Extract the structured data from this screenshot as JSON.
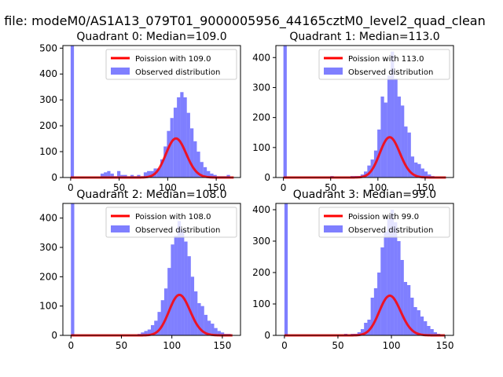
{
  "figure": {
    "suptitle": "n file: modeM0/AS1A13_079T01_9000005956_44165cztM0_level2_quad_clean"
  },
  "colors": {
    "histogram": "#0000ff",
    "histogram_alpha": 0.5,
    "poisson": "#ff0000",
    "axes": "#000000"
  },
  "chart_data": [
    {
      "type": "bar",
      "title": "Quadrant 0: Median=109.0",
      "xlabel": "",
      "ylabel": "",
      "xlim": [
        -8,
        175
      ],
      "ylim": [
        0,
        510
      ],
      "xticks": [
        0,
        50,
        100,
        150
      ],
      "yticks": [
        0,
        100,
        200,
        300,
        400,
        500
      ],
      "grid": false,
      "legend": {
        "placement": "upper right",
        "entries": [
          "Poission with 109.0",
          "Observed distribution"
        ]
      },
      "poisson_lambda": 109.0,
      "poisson_n": 3950,
      "poisson_xrange": [
        0,
        168
      ],
      "bin_width": 3.42,
      "histogram": [
        {
          "x": 0,
          "v": 510
        },
        {
          "x": 3.4,
          "v": 0
        },
        {
          "x": 6.8,
          "v": 0
        },
        {
          "x": 10.3,
          "v": 2
        },
        {
          "x": 13.7,
          "v": 0
        },
        {
          "x": 17.1,
          "v": 0
        },
        {
          "x": 20.5,
          "v": 0
        },
        {
          "x": 24.0,
          "v": 0
        },
        {
          "x": 27.4,
          "v": 0
        },
        {
          "x": 30.8,
          "v": 15
        },
        {
          "x": 34.2,
          "v": 20
        },
        {
          "x": 37.6,
          "v": 25
        },
        {
          "x": 41.1,
          "v": 15
        },
        {
          "x": 44.5,
          "v": 5
        },
        {
          "x": 47.9,
          "v": 25
        },
        {
          "x": 51.3,
          "v": 10
        },
        {
          "x": 54.7,
          "v": 10
        },
        {
          "x": 58.2,
          "v": 5
        },
        {
          "x": 61.6,
          "v": 10
        },
        {
          "x": 65.0,
          "v": 5
        },
        {
          "x": 68.4,
          "v": 10
        },
        {
          "x": 71.9,
          "v": 5
        },
        {
          "x": 75.3,
          "v": 20
        },
        {
          "x": 78.7,
          "v": 25
        },
        {
          "x": 82.1,
          "v": 25
        },
        {
          "x": 85.5,
          "v": 35
        },
        {
          "x": 89.0,
          "v": 35
        },
        {
          "x": 92.4,
          "v": 70
        },
        {
          "x": 95.8,
          "v": 120
        },
        {
          "x": 99.2,
          "v": 180
        },
        {
          "x": 102.6,
          "v": 230
        },
        {
          "x": 106.1,
          "v": 270
        },
        {
          "x": 109.5,
          "v": 310
        },
        {
          "x": 112.9,
          "v": 330
        },
        {
          "x": 116.3,
          "v": 310
        },
        {
          "x": 119.7,
          "v": 250
        },
        {
          "x": 123.2,
          "v": 190
        },
        {
          "x": 126.6,
          "v": 140
        },
        {
          "x": 130.0,
          "v": 100
        },
        {
          "x": 133.4,
          "v": 60
        },
        {
          "x": 136.9,
          "v": 40
        },
        {
          "x": 140.3,
          "v": 25
        },
        {
          "x": 143.7,
          "v": 15
        },
        {
          "x": 147.1,
          "v": 10
        },
        {
          "x": 150.5,
          "v": 5
        },
        {
          "x": 154.0,
          "v": 5
        },
        {
          "x": 157.4,
          "v": 5
        },
        {
          "x": 160.8,
          "v": 10
        }
      ]
    },
    {
      "type": "bar",
      "title": "Quadrant 1: Median=113.0",
      "xlabel": "",
      "ylabel": "",
      "xlim": [
        -8,
        180
      ],
      "ylim": [
        0,
        440
      ],
      "xticks": [
        0,
        50,
        100,
        150
      ],
      "yticks": [
        0,
        100,
        200,
        300,
        400
      ],
      "grid": false,
      "legend": {
        "placement": "upper right",
        "entries": [
          "Poission with 113.0",
          "Observed distribution"
        ]
      },
      "poisson_lambda": 113.0,
      "poisson_n": 3580,
      "poisson_xrange": [
        0,
        172
      ],
      "bin_width": 3.55,
      "histogram": [
        {
          "x": 0,
          "v": 440
        },
        {
          "x": 3.6,
          "v": 0
        },
        {
          "x": 7.1,
          "v": 0
        },
        {
          "x": 10.7,
          "v": 0
        },
        {
          "x": 14.2,
          "v": 0
        },
        {
          "x": 17.8,
          "v": 0
        },
        {
          "x": 21.3,
          "v": 0
        },
        {
          "x": 24.9,
          "v": 0
        },
        {
          "x": 28.4,
          "v": 0
        },
        {
          "x": 32.0,
          "v": 0
        },
        {
          "x": 35.5,
          "v": 0
        },
        {
          "x": 39.1,
          "v": 0
        },
        {
          "x": 42.6,
          "v": 0
        },
        {
          "x": 46.2,
          "v": 0
        },
        {
          "x": 49.7,
          "v": 5
        },
        {
          "x": 53.3,
          "v": 0
        },
        {
          "x": 56.8,
          "v": 0
        },
        {
          "x": 60.4,
          "v": 0
        },
        {
          "x": 63.9,
          "v": 0
        },
        {
          "x": 67.5,
          "v": 0
        },
        {
          "x": 71.0,
          "v": 5
        },
        {
          "x": 74.6,
          "v": 5
        },
        {
          "x": 78.1,
          "v": 5
        },
        {
          "x": 81.7,
          "v": 10
        },
        {
          "x": 85.2,
          "v": 20
        },
        {
          "x": 88.8,
          "v": 40
        },
        {
          "x": 92.3,
          "v": 60
        },
        {
          "x": 95.9,
          "v": 90
        },
        {
          "x": 99.4,
          "v": 160
        },
        {
          "x": 103.0,
          "v": 270
        },
        {
          "x": 106.5,
          "v": 250
        },
        {
          "x": 110.1,
          "v": 340
        },
        {
          "x": 113.6,
          "v": 420
        },
        {
          "x": 117.2,
          "v": 330
        },
        {
          "x": 120.7,
          "v": 270
        },
        {
          "x": 124.3,
          "v": 240
        },
        {
          "x": 127.8,
          "v": 170
        },
        {
          "x": 131.4,
          "v": 150
        },
        {
          "x": 134.9,
          "v": 70
        },
        {
          "x": 138.5,
          "v": 50
        },
        {
          "x": 142.0,
          "v": 45
        },
        {
          "x": 145.6,
          "v": 30
        },
        {
          "x": 149.1,
          "v": 20
        },
        {
          "x": 152.7,
          "v": 10
        },
        {
          "x": 156.2,
          "v": 5
        }
      ]
    },
    {
      "type": "bar",
      "title": "Quadrant 2: Median=108.0",
      "xlabel": "",
      "ylabel": "",
      "xlim": [
        -8,
        168
      ],
      "ylim": [
        0,
        450
      ],
      "xticks": [
        0,
        50,
        100,
        150
      ],
      "yticks": [
        0,
        100,
        200,
        300,
        400
      ],
      "grid": false,
      "legend": {
        "placement": "upper right",
        "entries": [
          "Poission with 108.0",
          "Observed distribution"
        ]
      },
      "poisson_lambda": 108.0,
      "poisson_n": 3600,
      "poisson_xrange": [
        0,
        160
      ],
      "bin_width": 3.3,
      "histogram": [
        {
          "x": 0,
          "v": 450
        },
        {
          "x": 3.3,
          "v": 0
        },
        {
          "x": 6.6,
          "v": 0
        },
        {
          "x": 9.9,
          "v": 0
        },
        {
          "x": 13.2,
          "v": 0
        },
        {
          "x": 16.5,
          "v": 0
        },
        {
          "x": 19.8,
          "v": 0
        },
        {
          "x": 23.1,
          "v": 0
        },
        {
          "x": 26.4,
          "v": 0
        },
        {
          "x": 29.7,
          "v": 0
        },
        {
          "x": 33.0,
          "v": 0
        },
        {
          "x": 36.3,
          "v": 0
        },
        {
          "x": 39.6,
          "v": 0
        },
        {
          "x": 42.9,
          "v": 0
        },
        {
          "x": 46.2,
          "v": 0
        },
        {
          "x": 49.5,
          "v": 0
        },
        {
          "x": 52.8,
          "v": 0
        },
        {
          "x": 56.1,
          "v": 0
        },
        {
          "x": 59.4,
          "v": 0
        },
        {
          "x": 62.7,
          "v": 0
        },
        {
          "x": 66.0,
          "v": 5
        },
        {
          "x": 69.3,
          "v": 10
        },
        {
          "x": 72.6,
          "v": 15
        },
        {
          "x": 75.9,
          "v": 20
        },
        {
          "x": 79.2,
          "v": 35
        },
        {
          "x": 82.5,
          "v": 50
        },
        {
          "x": 85.8,
          "v": 80
        },
        {
          "x": 89.1,
          "v": 120
        },
        {
          "x": 92.4,
          "v": 160
        },
        {
          "x": 95.7,
          "v": 230
        },
        {
          "x": 99.0,
          "v": 310
        },
        {
          "x": 102.3,
          "v": 340
        },
        {
          "x": 105.6,
          "v": 390
        },
        {
          "x": 108.9,
          "v": 360
        },
        {
          "x": 112.2,
          "v": 320
        },
        {
          "x": 115.5,
          "v": 270
        },
        {
          "x": 118.8,
          "v": 200
        },
        {
          "x": 122.1,
          "v": 150
        },
        {
          "x": 125.4,
          "v": 110
        },
        {
          "x": 128.7,
          "v": 100
        },
        {
          "x": 132.0,
          "v": 70
        },
        {
          "x": 135.3,
          "v": 50
        },
        {
          "x": 138.6,
          "v": 40
        },
        {
          "x": 141.9,
          "v": 25
        },
        {
          "x": 145.2,
          "v": 15
        },
        {
          "x": 148.5,
          "v": 10
        },
        {
          "x": 151.8,
          "v": 5
        },
        {
          "x": 155.1,
          "v": 5
        }
      ]
    },
    {
      "type": "bar",
      "title": "Quadrant 3: Median=99.0",
      "xlabel": "",
      "ylabel": "",
      "xlim": [
        -8,
        158
      ],
      "ylim": [
        0,
        420
      ],
      "xticks": [
        0,
        50,
        100,
        150
      ],
      "yticks": [
        0,
        100,
        200,
        300,
        400
      ],
      "grid": false,
      "legend": {
        "placement": "upper right",
        "entries": [
          "Poission with 99.0",
          "Observed distribution"
        ]
      },
      "poisson_lambda": 99.0,
      "poisson_n": 3150,
      "poisson_xrange": [
        0,
        150
      ],
      "bin_width": 3.1,
      "histogram": [
        {
          "x": 0,
          "v": 420
        },
        {
          "x": 3.1,
          "v": 0
        },
        {
          "x": 6.2,
          "v": 0
        },
        {
          "x": 9.3,
          "v": 0
        },
        {
          "x": 12.4,
          "v": 0
        },
        {
          "x": 15.5,
          "v": 0
        },
        {
          "x": 18.6,
          "v": 0
        },
        {
          "x": 21.7,
          "v": 0
        },
        {
          "x": 24.8,
          "v": 0
        },
        {
          "x": 27.9,
          "v": 0
        },
        {
          "x": 31.0,
          "v": 0
        },
        {
          "x": 34.1,
          "v": 0
        },
        {
          "x": 37.2,
          "v": 0
        },
        {
          "x": 40.3,
          "v": 0
        },
        {
          "x": 43.4,
          "v": 0
        },
        {
          "x": 46.5,
          "v": 0
        },
        {
          "x": 49.6,
          "v": 0
        },
        {
          "x": 52.7,
          "v": 0
        },
        {
          "x": 55.8,
          "v": 5
        },
        {
          "x": 58.9,
          "v": 0
        },
        {
          "x": 62.0,
          "v": 5
        },
        {
          "x": 65.1,
          "v": 5
        },
        {
          "x": 68.2,
          "v": 10
        },
        {
          "x": 71.3,
          "v": 20
        },
        {
          "x": 74.4,
          "v": 40
        },
        {
          "x": 77.5,
          "v": 50
        },
        {
          "x": 80.6,
          "v": 120
        },
        {
          "x": 83.7,
          "v": 150
        },
        {
          "x": 86.8,
          "v": 200
        },
        {
          "x": 89.9,
          "v": 280
        },
        {
          "x": 93.0,
          "v": 330
        },
        {
          "x": 96.1,
          "v": 370
        },
        {
          "x": 99.2,
          "v": 400
        },
        {
          "x": 102.3,
          "v": 360
        },
        {
          "x": 105.4,
          "v": 300
        },
        {
          "x": 108.5,
          "v": 240
        },
        {
          "x": 111.6,
          "v": 170
        },
        {
          "x": 114.7,
          "v": 160
        },
        {
          "x": 117.8,
          "v": 120
        },
        {
          "x": 120.9,
          "v": 90
        },
        {
          "x": 124.0,
          "v": 80
        },
        {
          "x": 127.1,
          "v": 60
        },
        {
          "x": 130.2,
          "v": 45
        },
        {
          "x": 133.3,
          "v": 30
        },
        {
          "x": 136.4,
          "v": 20
        },
        {
          "x": 139.5,
          "v": 10
        },
        {
          "x": 142.6,
          "v": 5
        }
      ]
    }
  ]
}
